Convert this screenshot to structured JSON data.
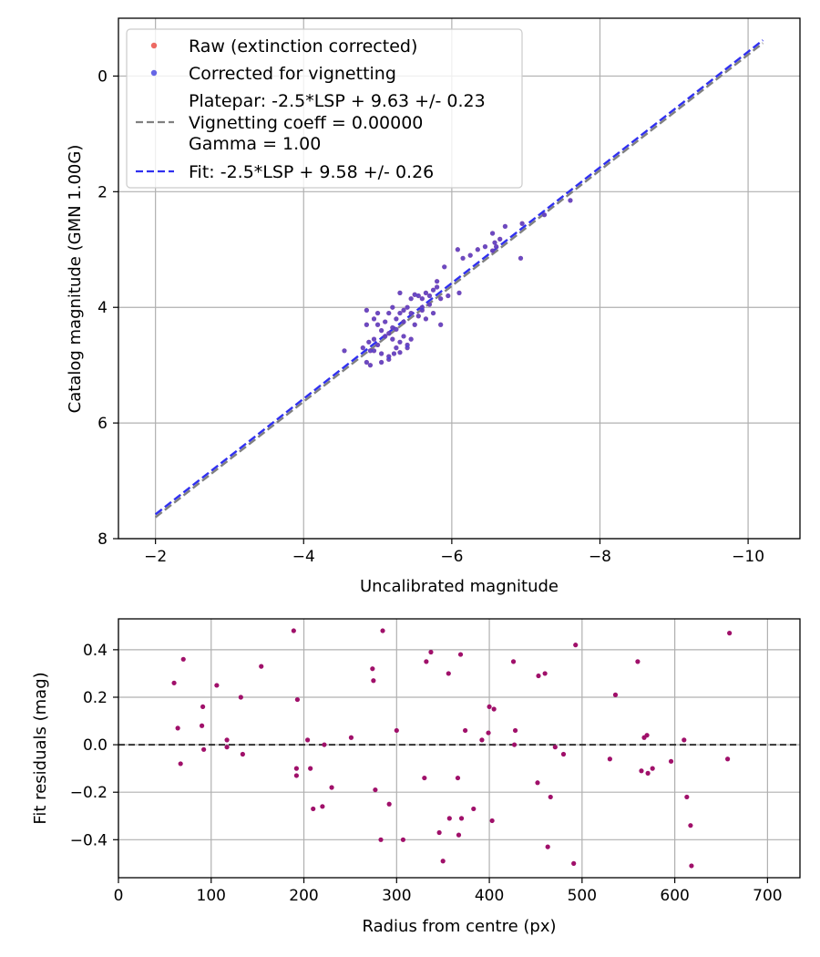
{
  "chart_data": [
    {
      "type": "scatter",
      "xlabel": "Uncalibrated magnitude",
      "ylabel": "Catalog magnitude (GMN 1.00G)",
      "xlim": [
        -1.5,
        -10.7
      ],
      "ylim": [
        8.0,
        -1.0
      ],
      "xticks": [
        -2,
        -4,
        -6,
        -8,
        -10
      ],
      "xtick_labels": [
        "−2",
        "−4",
        "−6",
        "−8",
        "−10"
      ],
      "yticks": [
        0,
        2,
        4,
        6,
        8
      ],
      "ytick_labels": [
        "0",
        "2",
        "4",
        "6",
        "8"
      ],
      "grid": true,
      "legend_position": "top-left",
      "colors": {
        "raw": "#e8453c",
        "corrected": "#4040e0",
        "overlap": "#6a1ea8",
        "platepar_line": "#808080",
        "fit_line": "#3030f0"
      },
      "legend": [
        {
          "kind": "marker",
          "color": "#e8453c",
          "lines": [
            "Raw (extinction corrected)"
          ]
        },
        {
          "kind": "marker",
          "color": "#4040e0",
          "lines": [
            "Corrected for vignetting"
          ]
        },
        {
          "kind": "line",
          "color": "#808080",
          "lines": [
            "Platepar: -2.5*LSP + 9.63 +/- 0.23",
            "Vignetting coeff = 0.00000",
            "Gamma = 1.00"
          ]
        },
        {
          "kind": "line",
          "color": "#3030f0",
          "lines": [
            "Fit: -2.5*LSP + 9.58 +/- 0.26"
          ]
        }
      ],
      "lines": [
        {
          "name": "Platepar",
          "intercept": 9.63,
          "color": "#808080"
        },
        {
          "name": "Fit",
          "intercept": 9.58,
          "color": "#3030f0"
        }
      ],
      "series": [
        {
          "name": "Raw (extinction corrected)",
          "points": [
            [
              -7.6,
              2.15
            ],
            [
              -7.25,
              2.4
            ],
            [
              -6.95,
              2.55
            ],
            [
              -6.93,
              3.15
            ],
            [
              -6.72,
              2.6
            ],
            [
              -6.65,
              2.82
            ],
            [
              -6.55,
              2.72
            ],
            [
              -6.58,
              2.88
            ],
            [
              -6.6,
              2.95
            ],
            [
              -6.45,
              2.95
            ],
            [
              -6.55,
              3.02
            ],
            [
              -6.35,
              3.0
            ],
            [
              -6.25,
              3.1
            ],
            [
              -6.15,
              3.15
            ],
            [
              -6.08,
              3.0
            ],
            [
              -5.9,
              3.3
            ],
            [
              -5.8,
              3.55
            ],
            [
              -6.1,
              3.75
            ],
            [
              -5.95,
              3.8
            ],
            [
              -5.85,
              3.85
            ],
            [
              -5.75,
              3.7
            ],
            [
              -5.7,
              3.8
            ],
            [
              -5.65,
              3.75
            ],
            [
              -5.6,
              3.85
            ],
            [
              -5.55,
              3.8
            ],
            [
              -5.5,
              3.78
            ],
            [
              -5.45,
              3.85
            ],
            [
              -5.3,
              3.75
            ],
            [
              -5.4,
              4.0
            ],
            [
              -5.6,
              4.0
            ],
            [
              -5.7,
              3.95
            ],
            [
              -5.55,
              4.15
            ],
            [
              -5.65,
              4.2
            ],
            [
              -5.45,
              4.1
            ],
            [
              -5.35,
              4.05
            ],
            [
              -5.2,
              4.0
            ],
            [
              -5.15,
              4.1
            ],
            [
              -5.25,
              4.2
            ],
            [
              -5.35,
              4.25
            ],
            [
              -5.5,
              4.3
            ],
            [
              -5.1,
              4.25
            ],
            [
              -5.0,
              4.3
            ],
            [
              -4.95,
              4.2
            ],
            [
              -4.85,
              4.3
            ],
            [
              -5.05,
              4.4
            ],
            [
              -5.15,
              4.45
            ],
            [
              -5.25,
              4.38
            ],
            [
              -5.35,
              4.5
            ],
            [
              -5.45,
              4.55
            ],
            [
              -5.3,
              4.6
            ],
            [
              -5.2,
              4.55
            ],
            [
              -5.1,
              4.5
            ],
            [
              -4.95,
              4.55
            ],
            [
              -4.88,
              4.6
            ],
            [
              -4.8,
              4.7
            ],
            [
              -4.9,
              4.75
            ],
            [
              -5.0,
              4.65
            ],
            [
              -5.05,
              4.8
            ],
            [
              -5.15,
              4.85
            ],
            [
              -5.22,
              4.8
            ],
            [
              -5.3,
              4.78
            ],
            [
              -5.4,
              4.7
            ],
            [
              -5.25,
              4.7
            ],
            [
              -4.55,
              4.75
            ],
            [
              -4.95,
              4.75
            ],
            [
              -5.05,
              4.95
            ],
            [
              -4.9,
              5.0
            ],
            [
              -5.15,
              4.9
            ],
            [
              -4.85,
              4.95
            ],
            [
              -5.4,
              4.65
            ],
            [
              -5.3,
              4.1
            ],
            [
              -5.0,
              4.1
            ],
            [
              -4.85,
              4.05
            ],
            [
              -5.6,
              4.05
            ],
            [
              -5.75,
              4.1
            ],
            [
              -5.8,
              3.65
            ],
            [
              -5.85,
              4.3
            ],
            [
              -5.2,
              4.35
            ]
          ]
        },
        {
          "name": "Corrected for vignetting",
          "points": [
            [
              -7.6,
              2.15
            ],
            [
              -7.25,
              2.4
            ],
            [
              -6.95,
              2.55
            ],
            [
              -6.93,
              3.15
            ],
            [
              -6.72,
              2.6
            ],
            [
              -6.65,
              2.82
            ],
            [
              -6.55,
              2.72
            ],
            [
              -6.58,
              2.88
            ],
            [
              -6.6,
              2.95
            ],
            [
              -6.45,
              2.95
            ],
            [
              -6.55,
              3.02
            ],
            [
              -6.35,
              3.0
            ],
            [
              -6.25,
              3.1
            ],
            [
              -6.15,
              3.15
            ],
            [
              -6.08,
              3.0
            ],
            [
              -5.9,
              3.3
            ],
            [
              -5.8,
              3.55
            ],
            [
              -6.1,
              3.75
            ],
            [
              -5.95,
              3.8
            ],
            [
              -5.85,
              3.85
            ],
            [
              -5.75,
              3.7
            ],
            [
              -5.7,
              3.8
            ],
            [
              -5.65,
              3.75
            ],
            [
              -5.6,
              3.85
            ],
            [
              -5.55,
              3.8
            ],
            [
              -5.5,
              3.78
            ],
            [
              -5.45,
              3.85
            ],
            [
              -5.3,
              3.75
            ],
            [
              -5.4,
              4.0
            ],
            [
              -5.6,
              4.0
            ],
            [
              -5.7,
              3.95
            ],
            [
              -5.55,
              4.15
            ],
            [
              -5.65,
              4.2
            ],
            [
              -5.45,
              4.1
            ],
            [
              -5.35,
              4.05
            ],
            [
              -5.2,
              4.0
            ],
            [
              -5.15,
              4.1
            ],
            [
              -5.25,
              4.2
            ],
            [
              -5.35,
              4.25
            ],
            [
              -5.5,
              4.3
            ],
            [
              -5.1,
              4.25
            ],
            [
              -5.0,
              4.3
            ],
            [
              -4.95,
              4.2
            ],
            [
              -4.85,
              4.3
            ],
            [
              -5.05,
              4.4
            ],
            [
              -5.15,
              4.45
            ],
            [
              -5.25,
              4.38
            ],
            [
              -5.35,
              4.5
            ],
            [
              -5.45,
              4.55
            ],
            [
              -5.3,
              4.6
            ],
            [
              -5.2,
              4.55
            ],
            [
              -5.1,
              4.5
            ],
            [
              -4.95,
              4.55
            ],
            [
              -4.88,
              4.6
            ],
            [
              -4.8,
              4.7
            ],
            [
              -4.9,
              4.75
            ],
            [
              -5.0,
              4.65
            ],
            [
              -5.05,
              4.8
            ],
            [
              -5.15,
              4.85
            ],
            [
              -5.22,
              4.8
            ],
            [
              -5.3,
              4.78
            ],
            [
              -5.4,
              4.7
            ],
            [
              -5.25,
              4.7
            ],
            [
              -4.55,
              4.75
            ],
            [
              -4.95,
              4.75
            ],
            [
              -5.05,
              4.95
            ],
            [
              -4.9,
              5.0
            ],
            [
              -5.15,
              4.9
            ],
            [
              -4.85,
              4.95
            ],
            [
              -5.4,
              4.65
            ],
            [
              -5.3,
              4.1
            ],
            [
              -5.0,
              4.1
            ],
            [
              -4.85,
              4.05
            ],
            [
              -5.6,
              4.05
            ],
            [
              -5.75,
              4.1
            ],
            [
              -5.8,
              3.65
            ],
            [
              -5.85,
              4.3
            ],
            [
              -5.2,
              4.35
            ]
          ]
        }
      ]
    },
    {
      "type": "scatter",
      "xlabel": "Radius from centre (px)",
      "ylabel": "Fit residuals (mag)",
      "xlim": [
        0,
        735
      ],
      "ylim": [
        -0.56,
        0.53
      ],
      "xticks": [
        0,
        100,
        200,
        300,
        400,
        500,
        600,
        700
      ],
      "xtick_labels": [
        "0",
        "100",
        "200",
        "300",
        "400",
        "500",
        "600",
        "700"
      ],
      "yticks": [
        -0.4,
        -0.2,
        0.0,
        0.2,
        0.4
      ],
      "ytick_labels": [
        "−0.4",
        "−0.2",
        "0.0",
        "0.2",
        "0.4"
      ],
      "grid": true,
      "reference_line": {
        "y": 0.0,
        "style": "dashed",
        "color": "#000000"
      },
      "colors": {
        "points": "#a0106a"
      },
      "series": [
        {
          "name": "Residuals",
          "points": [
            [
              60,
              0.26
            ],
            [
              64,
              0.07
            ],
            [
              67,
              -0.08
            ],
            [
              70,
              0.36
            ],
            [
              90,
              0.08
            ],
            [
              91,
              0.16
            ],
            [
              92,
              -0.02
            ],
            [
              106,
              0.25
            ],
            [
              117,
              0.02
            ],
            [
              117,
              -0.01
            ],
            [
              132,
              0.2
            ],
            [
              134,
              -0.04
            ],
            [
              154,
              0.33
            ],
            [
              189,
              0.48
            ],
            [
              192,
              -0.1
            ],
            [
              192,
              -0.13
            ],
            [
              193,
              0.19
            ],
            [
              204,
              0.02
            ],
            [
              207,
              -0.1
            ],
            [
              210,
              -0.27
            ],
            [
              220,
              -0.26
            ],
            [
              222,
              0.0
            ],
            [
              230,
              -0.18
            ],
            [
              251,
              0.03
            ],
            [
              274,
              0.32
            ],
            [
              275,
              0.27
            ],
            [
              277,
              -0.19
            ],
            [
              283,
              -0.4
            ],
            [
              285,
              0.48
            ],
            [
              292,
              -0.25
            ],
            [
              300,
              0.06
            ],
            [
              307,
              -0.4
            ],
            [
              330,
              -0.14
            ],
            [
              332,
              0.35
            ],
            [
              337,
              0.39
            ],
            [
              346,
              -0.37
            ],
            [
              350,
              -0.49
            ],
            [
              356,
              0.3
            ],
            [
              357,
              -0.31
            ],
            [
              366,
              -0.14
            ],
            [
              367,
              -0.38
            ],
            [
              369,
              0.38
            ],
            [
              370,
              -0.31
            ],
            [
              374,
              0.06
            ],
            [
              383,
              -0.27
            ],
            [
              392,
              0.02
            ],
            [
              399,
              0.05
            ],
            [
              400,
              0.16
            ],
            [
              403,
              -0.32
            ],
            [
              405,
              0.15
            ],
            [
              426,
              0.35
            ],
            [
              428,
              0.06
            ],
            [
              427,
              0.0
            ],
            [
              452,
              -0.16
            ],
            [
              453,
              0.29
            ],
            [
              460,
              0.3
            ],
            [
              463,
              -0.43
            ],
            [
              466,
              -0.22
            ],
            [
              471,
              -0.01
            ],
            [
              480,
              -0.04
            ],
            [
              491,
              -0.5
            ],
            [
              493,
              0.42
            ],
            [
              530,
              -0.06
            ],
            [
              536,
              0.21
            ],
            [
              560,
              0.35
            ],
            [
              564,
              -0.11
            ],
            [
              567,
              0.03
            ],
            [
              570,
              0.04
            ],
            [
              571,
              -0.12
            ],
            [
              576,
              -0.1
            ],
            [
              596,
              -0.07
            ],
            [
              610,
              0.02
            ],
            [
              613,
              -0.22
            ],
            [
              617,
              -0.34
            ],
            [
              618,
              -0.51
            ],
            [
              657,
              -0.06
            ],
            [
              659,
              0.47
            ]
          ]
        }
      ]
    }
  ]
}
